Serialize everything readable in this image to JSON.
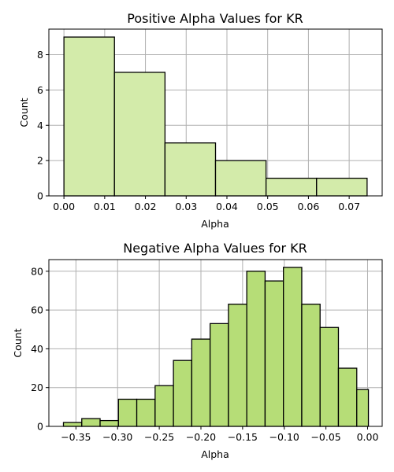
{
  "chart_data": [
    {
      "type": "bar",
      "title": "Positive Alpha Values for KR",
      "xlabel": "Alpha",
      "ylabel": "Count",
      "bar_color": "#d3ebaa",
      "xlim": [
        -0.0037,
        0.0781
      ],
      "ylim": [
        0,
        9.45
      ],
      "xticks": [
        0.0,
        0.01,
        0.02,
        0.03,
        0.04,
        0.05,
        0.06,
        0.07
      ],
      "xtick_labels": [
        "0.00",
        "0.01",
        "0.02",
        "0.03",
        "0.04",
        "0.05",
        "0.06",
        "0.07"
      ],
      "yticks": [
        0,
        2,
        4,
        6,
        8
      ],
      "ytick_labels": [
        "0",
        "2",
        "4",
        "6",
        "8"
      ],
      "grid": true,
      "bins": [
        {
          "x0": 0.0,
          "x1": 0.0124,
          "count": 9
        },
        {
          "x0": 0.0124,
          "x1": 0.0248,
          "count": 7
        },
        {
          "x0": 0.0248,
          "x1": 0.0372,
          "count": 3
        },
        {
          "x0": 0.0372,
          "x1": 0.0496,
          "count": 2
        },
        {
          "x0": 0.0496,
          "x1": 0.062,
          "count": 1
        },
        {
          "x0": 0.062,
          "x1": 0.0744,
          "count": 1
        }
      ]
    },
    {
      "type": "bar",
      "title": "Negative Alpha Values for KR",
      "xlabel": "Alpha",
      "ylabel": "Count",
      "bar_color": "#b6dd77",
      "xlim": [
        -0.3825,
        0.0175
      ],
      "ylim": [
        0,
        86
      ],
      "xticks": [
        -0.35,
        -0.3,
        -0.25,
        -0.2,
        -0.15,
        -0.1,
        -0.05,
        0.0
      ],
      "xtick_labels": [
        "−0.35",
        "−0.30",
        "−0.25",
        "−0.20",
        "−0.15",
        "−0.10",
        "−0.05",
        "0.00"
      ],
      "yticks": [
        0,
        20,
        40,
        60,
        80
      ],
      "ytick_labels": [
        "0",
        "20",
        "40",
        "60",
        "80"
      ],
      "grid": true,
      "bins": [
        {
          "x0": -0.365,
          "x1": -0.343,
          "count": 2
        },
        {
          "x0": -0.343,
          "x1": -0.321,
          "count": 4
        },
        {
          "x0": -0.321,
          "x1": -0.299,
          "count": 3
        },
        {
          "x0": -0.299,
          "x1": -0.277,
          "count": 14
        },
        {
          "x0": -0.277,
          "x1": -0.255,
          "count": 14
        },
        {
          "x0": -0.255,
          "x1": -0.233,
          "count": 21
        },
        {
          "x0": -0.233,
          "x1": -0.211,
          "count": 34
        },
        {
          "x0": -0.211,
          "x1": -0.189,
          "count": 45
        },
        {
          "x0": -0.189,
          "x1": -0.167,
          "count": 53
        },
        {
          "x0": -0.167,
          "x1": -0.145,
          "count": 63
        },
        {
          "x0": -0.145,
          "x1": -0.123,
          "count": 80
        },
        {
          "x0": -0.123,
          "x1": -0.101,
          "count": 75
        },
        {
          "x0": -0.101,
          "x1": -0.079,
          "count": 82
        },
        {
          "x0": -0.079,
          "x1": -0.057,
          "count": 63
        },
        {
          "x0": -0.057,
          "x1": -0.035,
          "count": 51
        },
        {
          "x0": -0.035,
          "x1": -0.013,
          "count": 30
        },
        {
          "x0": -0.013,
          "x1": 0.001,
          "count": 19
        }
      ]
    }
  ]
}
